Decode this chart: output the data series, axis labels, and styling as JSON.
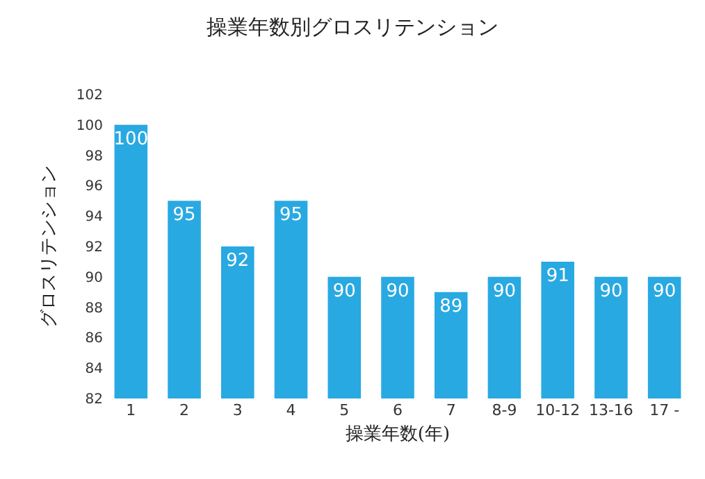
{
  "chart_data": {
    "type": "bar",
    "title": "操業年数別グロスリテンション",
    "xlabel": "操業年数(年)",
    "ylabel": "グロスリテンション",
    "categories": [
      "1",
      "2",
      "3",
      "4",
      "5",
      "6",
      "7",
      "8-9",
      "10-12",
      "13-16",
      "17 -"
    ],
    "values": [
      100,
      95,
      92,
      95,
      90,
      90,
      89,
      90,
      91,
      90,
      90
    ],
    "color": "#29a9e1",
    "ylim": [
      82,
      102
    ],
    "yticks": [
      82,
      84,
      86,
      88,
      90,
      92,
      94,
      96,
      98,
      100,
      102
    ],
    "grid": false,
    "data_labels": true
  }
}
